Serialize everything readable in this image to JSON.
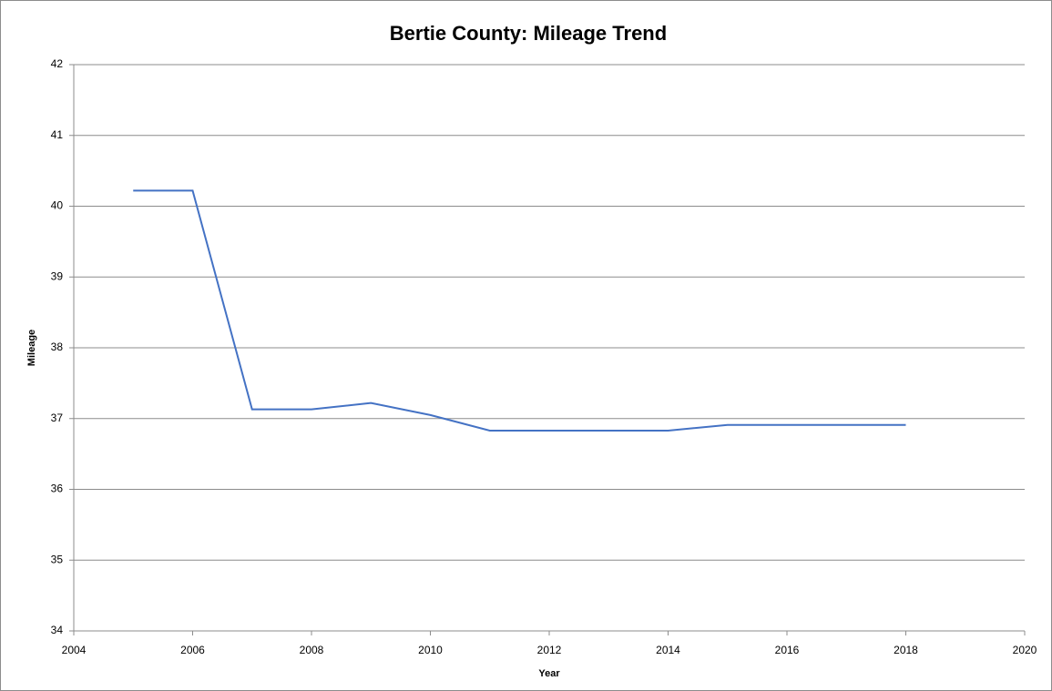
{
  "chart_data": {
    "type": "line",
    "title": "Bertie County: Mileage Trend",
    "x_label": "Year",
    "y_label": "Mileage",
    "x": [
      2005,
      2006,
      2007,
      2008,
      2009,
      2010,
      2011,
      2012,
      2013,
      2014,
      2015,
      2016,
      2017,
      2018
    ],
    "series": [
      {
        "name": "Mileage",
        "color": "#4472c4",
        "values": [
          40.22,
          40.22,
          37.13,
          37.13,
          37.22,
          37.05,
          36.83,
          36.83,
          36.83,
          36.83,
          36.91,
          36.91,
          36.91,
          36.91
        ]
      }
    ],
    "xlim": [
      2004,
      2020
    ],
    "xticks": [
      2004,
      2006,
      2008,
      2010,
      2012,
      2014,
      2016,
      2018,
      2020
    ],
    "ylim": [
      34,
      42
    ],
    "yticks": [
      34,
      35,
      36,
      37,
      38,
      39,
      40,
      41,
      42
    ],
    "grid": true
  }
}
